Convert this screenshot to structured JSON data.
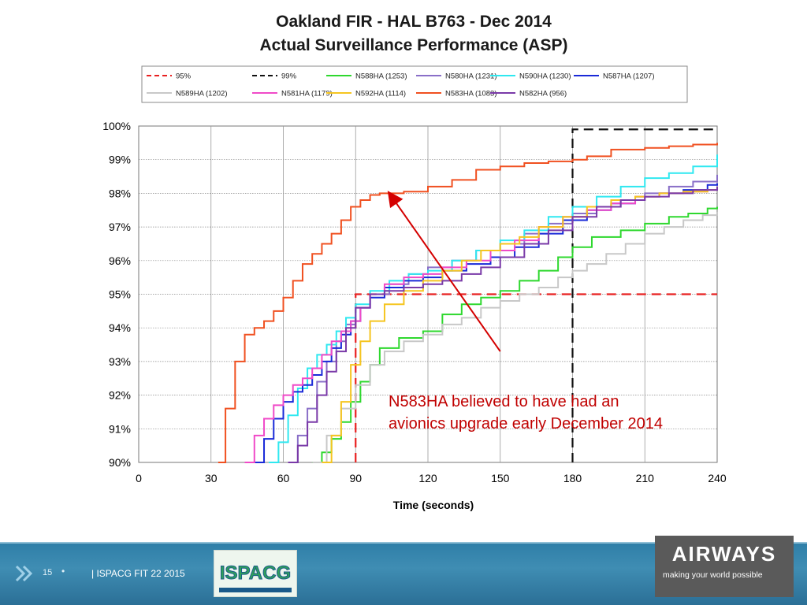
{
  "slide": {
    "page_number": "15",
    "bullet": "•",
    "footer_text": "| ISPACG FIT 22 2015",
    "ispacg_logo_text": "ISPACG",
    "airways_logo": {
      "name": "AIRWAYS",
      "tagline": "making your world possible"
    }
  },
  "annotation": {
    "line1": "N583HA believed to have had an",
    "line2": "avionics upgrade early December 2014",
    "color": "#d40000"
  },
  "chart_data": {
    "type": "line",
    "title": [
      "Oakland FIR - HAL B763 - Dec 2014",
      "Actual Surveillance Performance (ASP)"
    ],
    "xlabel": "Time (seconds)",
    "ylabel": "",
    "xlim": [
      0,
      240
    ],
    "ylim": [
      90,
      100
    ],
    "x_ticks": [
      0,
      30,
      60,
      90,
      120,
      150,
      180,
      210,
      240
    ],
    "y_ticks": [
      90,
      91,
      92,
      93,
      94,
      95,
      96,
      97,
      98,
      99,
      100
    ],
    "y_tick_labels": [
      "90%",
      "91%",
      "92%",
      "93%",
      "94%",
      "95%",
      "96%",
      "97%",
      "98%",
      "99%",
      "100%"
    ],
    "x_tick_labels": [
      "0",
      "30",
      "60",
      "90",
      "120",
      "150",
      "180",
      "210",
      "240"
    ],
    "grid": true,
    "legend": "top",
    "series": [
      {
        "name": "95%",
        "color": "#e82020",
        "style": "dashed",
        "x": [
          90,
          90,
          240
        ],
        "y": [
          90,
          95,
          95
        ]
      },
      {
        "name": "99%",
        "color": "#111111",
        "style": "dashed",
        "x": [
          180,
          180,
          240
        ],
        "y": [
          90,
          99.9,
          99.9
        ]
      },
      {
        "name": "N588HA (1253)",
        "color": "#2ed82e",
        "style": "solid",
        "x": [
          72,
          76,
          80,
          84,
          88,
          92,
          96,
          100,
          108,
          118,
          126,
          134,
          142,
          150,
          158,
          166,
          174,
          180,
          188,
          200,
          210,
          220,
          228,
          236,
          240
        ],
        "y": [
          90,
          90.3,
          90.7,
          91.2,
          91.8,
          92.4,
          92.9,
          93.4,
          93.7,
          93.9,
          94.4,
          94.7,
          94.9,
          95.1,
          95.4,
          95.7,
          96.1,
          96.4,
          96.7,
          96.9,
          97.1,
          97.3,
          97.4,
          97.55,
          97.6
        ]
      },
      {
        "name": "N580HA (1231)",
        "color": "#8a6fc8",
        "style": "solid",
        "x": [
          62,
          66,
          70,
          74,
          78,
          82,
          86,
          90,
          96,
          104,
          112,
          120,
          130,
          140,
          150,
          160,
          170,
          180,
          190,
          200,
          210,
          220,
          230,
          240
        ],
        "y": [
          90,
          90.8,
          91.6,
          92.4,
          93.0,
          93.6,
          94.1,
          94.6,
          95.0,
          95.3,
          95.6,
          95.8,
          96.0,
          96.3,
          96.5,
          96.8,
          97.1,
          97.4,
          97.6,
          97.8,
          98.0,
          98.2,
          98.35,
          98.55
        ]
      },
      {
        "name": "N590HA (1230)",
        "color": "#2fe8f0",
        "style": "solid",
        "x": [
          54,
          58,
          62,
          66,
          70,
          74,
          78,
          82,
          86,
          90,
          96,
          104,
          112,
          120,
          130,
          140,
          150,
          160,
          170,
          180,
          190,
          200,
          210,
          220,
          230,
          240
        ],
        "y": [
          90,
          90.6,
          91.4,
          92.2,
          92.8,
          93.2,
          93.5,
          93.9,
          94.3,
          94.7,
          95.1,
          95.4,
          95.6,
          95.7,
          96.0,
          96.3,
          96.6,
          96.9,
          97.3,
          97.6,
          97.9,
          98.2,
          98.45,
          98.6,
          98.8,
          99.15
        ]
      },
      {
        "name": "N587HA (1207)",
        "color": "#1a2ad8",
        "style": "solid",
        "x": [
          48,
          52,
          56,
          60,
          64,
          68,
          72,
          76,
          80,
          84,
          88,
          92,
          96,
          102,
          110,
          118,
          126,
          136,
          146,
          156,
          166,
          176,
          186,
          196,
          206,
          216,
          226,
          236,
          240
        ],
        "y": [
          90,
          90.7,
          91.3,
          91.8,
          92.1,
          92.3,
          92.6,
          93.0,
          93.4,
          93.8,
          94.2,
          94.6,
          94.9,
          95.2,
          95.4,
          95.5,
          95.7,
          95.9,
          96.1,
          96.4,
          96.8,
          97.2,
          97.5,
          97.7,
          97.9,
          98.0,
          98.1,
          98.25,
          98.3
        ]
      },
      {
        "name": "N589HA (1202)",
        "color": "#c8c8c8",
        "style": "solid",
        "x": [
          72,
          78,
          84,
          90,
          96,
          102,
          110,
          118,
          126,
          134,
          142,
          150,
          158,
          166,
          174,
          180,
          186,
          194,
          202,
          210,
          218,
          226,
          234,
          240
        ],
        "y": [
          90,
          90.8,
          91.6,
          92.3,
          92.9,
          93.3,
          93.6,
          93.8,
          94.1,
          94.3,
          94.6,
          94.8,
          95.0,
          95.2,
          95.5,
          95.7,
          95.9,
          96.2,
          96.5,
          96.8,
          97.0,
          97.2,
          97.35,
          97.45
        ]
      },
      {
        "name": "N581HA (1179)",
        "color": "#f04ac8",
        "style": "solid",
        "x": [
          44,
          48,
          52,
          56,
          60,
          64,
          68,
          72,
          76,
          80,
          84,
          88,
          92,
          96,
          102,
          110,
          118,
          126,
          136,
          146,
          156,
          166,
          176,
          186,
          196,
          206,
          216,
          226,
          236,
          240
        ],
        "y": [
          90,
          90.8,
          91.3,
          91.7,
          92.0,
          92.3,
          92.5,
          92.8,
          93.2,
          93.6,
          93.9,
          94.2,
          94.6,
          95.0,
          95.3,
          95.5,
          95.6,
          95.8,
          96.0,
          96.3,
          96.6,
          97.0,
          97.3,
          97.5,
          97.7,
          97.9,
          98.0,
          98.05,
          98.1,
          98.1
        ]
      },
      {
        "name": "N592HA (1114)",
        "color": "#f5c520",
        "style": "solid",
        "x": [
          76,
          80,
          84,
          88,
          92,
          96,
          102,
          110,
          118,
          126,
          134,
          142,
          150,
          158,
          166,
          176,
          186,
          196,
          206,
          216,
          226,
          236,
          240
        ],
        "y": [
          90,
          90.8,
          91.8,
          92.9,
          93.6,
          94.2,
          94.7,
          95.1,
          95.4,
          95.7,
          96.0,
          96.3,
          96.5,
          96.7,
          97.0,
          97.3,
          97.6,
          97.8,
          97.9,
          98.0,
          98.05,
          98.1,
          98.1
        ]
      },
      {
        "name": "N583HA (1083)",
        "color": "#f05020",
        "style": "solid",
        "x": [
          33,
          36,
          40,
          44,
          48,
          52,
          56,
          60,
          64,
          68,
          72,
          76,
          80,
          84,
          88,
          92,
          96,
          100,
          104,
          110,
          120,
          130,
          140,
          150,
          160,
          170,
          180,
          186,
          196,
          210,
          220,
          230,
          240
        ],
        "y": [
          90,
          91.6,
          93.0,
          93.8,
          94.0,
          94.2,
          94.5,
          94.9,
          95.4,
          95.9,
          96.2,
          96.5,
          96.8,
          97.2,
          97.6,
          97.8,
          97.95,
          98.0,
          98.0,
          98.05,
          98.2,
          98.4,
          98.7,
          98.8,
          98.9,
          98.95,
          99.0,
          99.1,
          99.3,
          99.35,
          99.4,
          99.45,
          99.5
        ]
      },
      {
        "name": "N582HA (956)",
        "color": "#7a3aa8",
        "style": "solid",
        "x": [
          62,
          66,
          70,
          74,
          78,
          82,
          86,
          90,
          96,
          102,
          110,
          118,
          126,
          134,
          142,
          150,
          160,
          170,
          180,
          190,
          200,
          210,
          220,
          230,
          240
        ],
        "y": [
          90,
          90.5,
          91.2,
          92.0,
          92.7,
          93.3,
          94.0,
          94.6,
          95.0,
          95.1,
          95.2,
          95.3,
          95.4,
          95.6,
          95.8,
          96.1,
          96.5,
          96.9,
          97.3,
          97.6,
          97.8,
          97.9,
          98.0,
          98.1,
          98.2
        ]
      }
    ],
    "annotations": [
      {
        "text": [
          "N583HA believed to have had an",
          "avionics upgrade early December 2014"
        ],
        "arrow_from": [
          150,
          93.3
        ],
        "arrow_to": [
          104,
          98.0
        ]
      }
    ]
  }
}
